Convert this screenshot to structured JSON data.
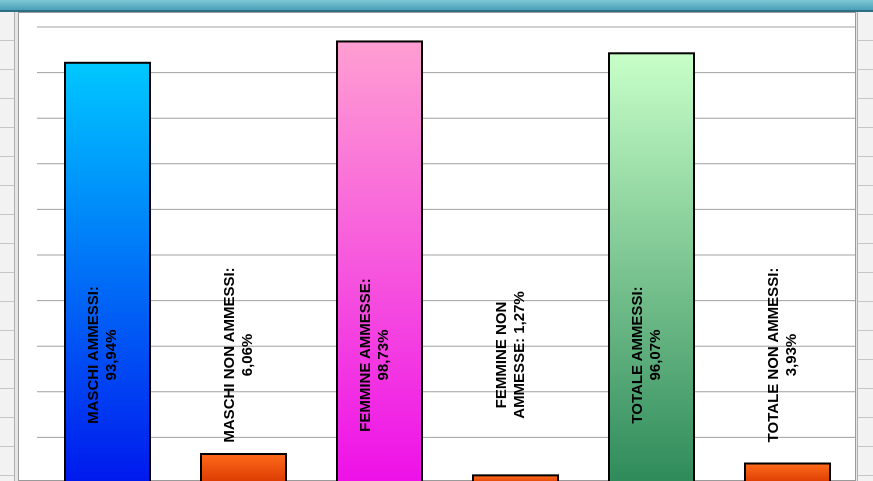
{
  "chart_data": {
    "type": "bar",
    "categories": [
      "MASCHI AMMESSI",
      "MASCHI NON AMMESSI",
      "FEMMINE AMMESSE",
      "FEMMINE NON AMMESSE",
      "TOTALE AMMESSI",
      "TOTALE NON AMMESSI"
    ],
    "values": [
      93.94,
      6.06,
      98.73,
      1.27,
      96.07,
      3.93
    ],
    "data_labels": [
      [
        "MASCHI AMMESSI:",
        "93,94%"
      ],
      [
        "MASCHI NON AMMESSI:",
        "6,06%"
      ],
      [
        "FEMMINE AMMESSE:",
        "98,73%"
      ],
      [
        "FEMMINE NON",
        "AMMESSE: 1,27%"
      ],
      [
        "TOTALE AMMESSI:",
        "96,07%"
      ],
      [
        "TOTALE NON AMMESSI:",
        "3,93%"
      ]
    ],
    "ylim": [
      0,
      104
    ],
    "grid": true,
    "bar_colors": [
      [
        "#00c8ff",
        "#0018ee"
      ],
      [
        "#ff6a1a",
        "#d83600"
      ],
      [
        "#ff9fd2",
        "#ee10e8"
      ],
      [
        "#ff6a1a",
        "#d83600"
      ],
      [
        "#c8ffc8",
        "#2e8a5a"
      ],
      [
        "#ff6a1a",
        "#d83600"
      ]
    ]
  }
}
